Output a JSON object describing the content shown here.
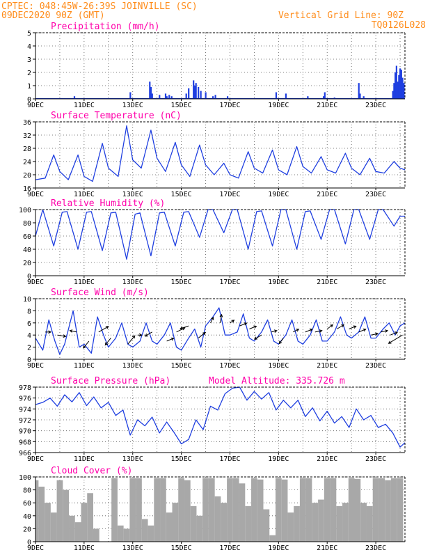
{
  "header": {
    "line1": "CPTEC:  048:45W-26:39S  JOINVILLE (SC)",
    "line2": "09DEC2020 90Z (GMT)",
    "grid_note": "Vertical Grid Line: 90Z",
    "code": "TQ0126L028"
  },
  "colors": {
    "header": "#ff8c1a",
    "title": "#ff00aa",
    "series": "#1f3fe0",
    "cloud": "#a8a8a8",
    "wind_arrow": "#000000"
  },
  "x_axis": {
    "labels": [
      "9DEC",
      "11DEC",
      "13DEC",
      "15DEC",
      "17DEC",
      "19DEC",
      "21DEC",
      "23DEC"
    ],
    "label_days": [
      9,
      11,
      13,
      15,
      17,
      19,
      21,
      23
    ],
    "range_days": [
      9,
      24.2
    ],
    "grid": "dotted vertical at every day"
  },
  "chart_data": [
    {
      "type": "bar",
      "title": "Precipitation (mm/h)",
      "ylim": [
        0,
        5
      ],
      "yticks": [
        "0",
        "1",
        "2",
        "3",
        "4",
        "5"
      ],
      "series": [
        {
          "x": [
            10.6,
            12.9,
            13.7,
            13.75,
            13.8,
            14.1,
            14.35,
            14.4,
            14.5,
            14.6,
            15.2,
            15.3,
            15.5,
            15.55,
            15.6,
            15.7,
            15.8,
            16.0,
            16.3,
            16.4,
            16.9,
            18.9,
            19.3,
            20.2,
            20.85,
            20.9,
            21.3,
            22.3,
            22.35,
            22.5,
            23.7,
            23.75,
            23.8,
            23.85,
            23.9,
            23.95,
            24.0,
            24.05,
            24.1,
            24.15
          ],
          "y": [
            0.2,
            0.5,
            1.3,
            0.9,
            0.4,
            0.3,
            0.4,
            0.2,
            0.3,
            0.2,
            0.4,
            0.8,
            1.4,
            1.0,
            1.2,
            0.9,
            0.6,
            0.5,
            0.2,
            0.3,
            0.2,
            0.5,
            0.4,
            0.2,
            0.2,
            0.5,
            0.1,
            1.2,
            0.4,
            0.2,
            0.6,
            1.2,
            2.0,
            2.5,
            1.3,
            1.8,
            2.3,
            2.2,
            1.6,
            1.2
          ]
        }
      ]
    },
    {
      "type": "line",
      "title": "Surface Temperature (nC)",
      "ylim": [
        16,
        36
      ],
      "yticks": [
        "16",
        "20",
        "24",
        "28",
        "32",
        "36"
      ],
      "series": [
        {
          "x": [
            9.0,
            9.4,
            9.75,
            10.0,
            10.35,
            10.75,
            11.0,
            11.35,
            11.75,
            12.0,
            12.4,
            12.75,
            13.0,
            13.35,
            13.75,
            14.0,
            14.35,
            14.75,
            15.0,
            15.35,
            15.75,
            16.0,
            16.35,
            16.75,
            17.0,
            17.35,
            17.75,
            18.0,
            18.35,
            18.75,
            19.0,
            19.35,
            19.75,
            20.0,
            20.35,
            20.75,
            21.0,
            21.35,
            21.75,
            22.0,
            22.35,
            22.75,
            23.0,
            23.35,
            23.75,
            24.0,
            24.2
          ],
          "y": [
            18.5,
            19.0,
            26.0,
            21.0,
            18.5,
            26.0,
            19.5,
            18.0,
            29.5,
            22.0,
            19.5,
            34.8,
            24.5,
            22.0,
            33.5,
            25.0,
            21.0,
            29.8,
            23.0,
            19.5,
            29.0,
            23.0,
            20.0,
            23.5,
            20.0,
            19.0,
            27.0,
            22.0,
            20.5,
            27.5,
            21.5,
            20.0,
            28.5,
            22.5,
            20.5,
            25.5,
            21.5,
            20.5,
            26.5,
            22.0,
            20.0,
            25.0,
            21.0,
            20.5,
            24.0,
            22.0,
            21.5
          ]
        }
      ]
    },
    {
      "type": "line",
      "title": "Relative Humidity (%)",
      "ylim": [
        0,
        100
      ],
      "yticks": [
        "0",
        "20",
        "40",
        "60",
        "80",
        "100"
      ],
      "series": [
        {
          "x": [
            9.0,
            9.3,
            9.75,
            10.1,
            10.3,
            10.75,
            11.1,
            11.3,
            11.75,
            12.1,
            12.3,
            12.75,
            13.1,
            13.3,
            13.75,
            14.1,
            14.3,
            14.75,
            15.1,
            15.3,
            15.75,
            16.1,
            16.3,
            16.75,
            17.1,
            17.3,
            17.75,
            18.1,
            18.3,
            18.75,
            19.1,
            19.3,
            19.75,
            20.1,
            20.3,
            20.75,
            21.1,
            21.3,
            21.75,
            22.1,
            22.3,
            22.75,
            23.1,
            23.3,
            23.75,
            24.0,
            24.2
          ],
          "y": [
            60,
            100,
            45,
            96,
            97,
            40,
            96,
            97,
            38,
            95,
            96,
            25,
            93,
            95,
            30,
            95,
            96,
            45,
            96,
            97,
            58,
            100,
            100,
            65,
            100,
            100,
            40,
            97,
            98,
            45,
            100,
            100,
            40,
            97,
            98,
            55,
            100,
            100,
            48,
            100,
            100,
            55,
            100,
            100,
            75,
            90,
            90
          ]
        }
      ]
    },
    {
      "type": "line",
      "title": "Surface Wind (m/s)",
      "ylim": [
        0,
        10
      ],
      "yticks": [
        "0",
        "2",
        "4",
        "6",
        "8",
        "10"
      ],
      "series": [
        {
          "x": [
            9.0,
            9.3,
            9.55,
            9.8,
            10.0,
            10.2,
            10.55,
            10.8,
            11.0,
            11.3,
            11.55,
            11.8,
            12.0,
            12.3,
            12.55,
            12.8,
            13.0,
            13.3,
            13.55,
            13.8,
            14.0,
            14.3,
            14.55,
            14.8,
            15.0,
            15.3,
            15.55,
            15.8,
            16.0,
            16.3,
            16.55,
            16.8,
            17.0,
            17.3,
            17.55,
            17.8,
            18.0,
            18.3,
            18.55,
            18.8,
            19.0,
            19.3,
            19.55,
            19.8,
            20.0,
            20.3,
            20.55,
            20.8,
            21.0,
            21.3,
            21.55,
            21.8,
            22.0,
            22.3,
            22.55,
            22.8,
            23.0,
            23.3,
            23.55,
            23.8,
            24.0,
            24.2
          ],
          "y": [
            3.5,
            1.5,
            6.5,
            3.0,
            0.8,
            2.5,
            8.0,
            2.0,
            2.5,
            1.0,
            7.0,
            4.0,
            2.0,
            3.5,
            6.0,
            2.5,
            2.0,
            3.0,
            6.0,
            3.0,
            2.5,
            4.0,
            6.0,
            2.0,
            1.5,
            3.5,
            5.0,
            2.0,
            5.5,
            7.0,
            8.5,
            4.0,
            4.0,
            4.5,
            7.5,
            3.5,
            3.0,
            4.5,
            6.5,
            3.0,
            2.5,
            4.0,
            6.5,
            3.0,
            2.5,
            4.0,
            6.5,
            3.0,
            3.0,
            4.5,
            7.0,
            4.0,
            3.5,
            4.5,
            7.0,
            3.5,
            3.5,
            5.0,
            6.0,
            4.0,
            5.5,
            6.0
          ]
        }
      ],
      "arrows": {
        "x": [
          9.4,
          9.9,
          10.7,
          11.2,
          11.6,
          12.1,
          12.8,
          13.2,
          13.8,
          14.4,
          14.8,
          15.3,
          15.7,
          16.2,
          16.6,
          17.0,
          17.4,
          17.8,
          18.3,
          18.7,
          19.2,
          19.6,
          20.1,
          20.5,
          21.0,
          21.4,
          21.9,
          22.3,
          22.8,
          23.2,
          23.6,
          24.1
        ],
        "y": [
          4.5,
          4.0,
          4.5,
          3.0,
          4.5,
          3.5,
          2.5,
          4.0,
          4.5,
          3.0,
          4.5,
          5.5,
          3.5,
          6.0,
          6.0,
          6.0,
          5.5,
          5.0,
          4.0,
          4.5,
          3.5,
          4.5,
          4.5,
          4.5,
          5.0,
          5.0,
          5.0,
          4.5,
          4.0,
          4.5,
          4.0,
          4.0
        ],
        "dx": [
          8,
          12,
          -10,
          -8,
          14,
          -8,
          10,
          6,
          -10,
          10,
          12,
          -12,
          10,
          4,
          2,
          6,
          10,
          10,
          -10,
          8,
          -6,
          8,
          10,
          10,
          8,
          10,
          10,
          10,
          10,
          10,
          10,
          -20
        ],
        "dy": [
          0,
          2,
          -2,
          10,
          -8,
          10,
          -12,
          0,
          6,
          -4,
          -6,
          4,
          -8,
          -8,
          -12,
          -4,
          -4,
          -4,
          6,
          -2,
          8,
          -4,
          -4,
          -2,
          -6,
          -6,
          -4,
          -4,
          -2,
          -2,
          -4,
          12
        ]
      }
    },
    {
      "type": "line",
      "title": "Surface Pressure (hPa)",
      "annotation": "Model Altitude: 335.726 m",
      "ylim": [
        966,
        978
      ],
      "yticks": [
        "966",
        "968",
        "970",
        "972",
        "974",
        "976",
        "978"
      ],
      "series": [
        {
          "x": [
            9.0,
            9.3,
            9.6,
            9.9,
            10.2,
            10.5,
            10.8,
            11.1,
            11.4,
            11.7,
            12.0,
            12.3,
            12.6,
            12.9,
            13.2,
            13.5,
            13.8,
            14.1,
            14.4,
            14.7,
            15.0,
            15.3,
            15.6,
            15.9,
            16.2,
            16.5,
            16.8,
            17.1,
            17.4,
            17.7,
            18.0,
            18.3,
            18.6,
            18.9,
            19.2,
            19.5,
            19.8,
            20.1,
            20.4,
            20.7,
            21.0,
            21.3,
            21.6,
            21.9,
            22.2,
            22.5,
            22.8,
            23.1,
            23.4,
            23.7,
            24.0,
            24.2
          ],
          "y": [
            974.8,
            975.2,
            976.0,
            974.5,
            976.6,
            975.3,
            977.0,
            974.6,
            976.2,
            974.2,
            975.2,
            972.8,
            973.8,
            969.2,
            972.0,
            970.9,
            972.5,
            969.6,
            971.6,
            969.7,
            967.6,
            968.4,
            972.0,
            970.2,
            974.5,
            973.8,
            976.8,
            977.8,
            978.0,
            975.6,
            977.2,
            975.8,
            977.0,
            973.8,
            975.6,
            974.2,
            975.6,
            972.6,
            974.2,
            971.8,
            973.6,
            971.4,
            972.6,
            970.6,
            974.0,
            972.0,
            972.8,
            970.6,
            971.2,
            969.6,
            967.0,
            967.8
          ]
        }
      ]
    },
    {
      "type": "bar",
      "title": "Cloud Cover (%)",
      "ylim": [
        0,
        100
      ],
      "yticks": [
        "0",
        "20",
        "40",
        "60",
        "80",
        "100"
      ],
      "series": [
        {
          "x": [
            9.0,
            9.25,
            9.5,
            9.75,
            10.0,
            10.25,
            10.5,
            10.75,
            11.0,
            11.25,
            11.5,
            11.75,
            12.0,
            12.25,
            12.5,
            12.75,
            13.0,
            13.25,
            13.5,
            13.75,
            14.0,
            14.25,
            14.5,
            14.75,
            15.0,
            15.25,
            15.5,
            15.75,
            16.0,
            16.25,
            16.5,
            16.75,
            17.0,
            17.25,
            17.5,
            17.75,
            18.0,
            18.25,
            18.5,
            18.75,
            19.0,
            19.25,
            19.5,
            19.75,
            20.0,
            20.25,
            20.5,
            20.75,
            21.0,
            21.25,
            21.5,
            21.75,
            22.0,
            22.25,
            22.5,
            22.75,
            23.0,
            23.25,
            23.5,
            23.75,
            24.0
          ],
          "y": [
            95,
            85,
            60,
            45,
            95,
            80,
            40,
            30,
            60,
            75,
            20,
            0,
            0,
            98,
            25,
            20,
            98,
            98,
            35,
            25,
            98,
            98,
            45,
            60,
            98,
            95,
            55,
            40,
            98,
            98,
            70,
            60,
            98,
            98,
            90,
            55,
            98,
            96,
            50,
            10,
            98,
            96,
            45,
            55,
            98,
            98,
            60,
            65,
            98,
            98,
            55,
            60,
            98,
            97,
            60,
            55,
            98,
            98,
            95,
            98,
            98
          ]
        }
      ]
    }
  ]
}
